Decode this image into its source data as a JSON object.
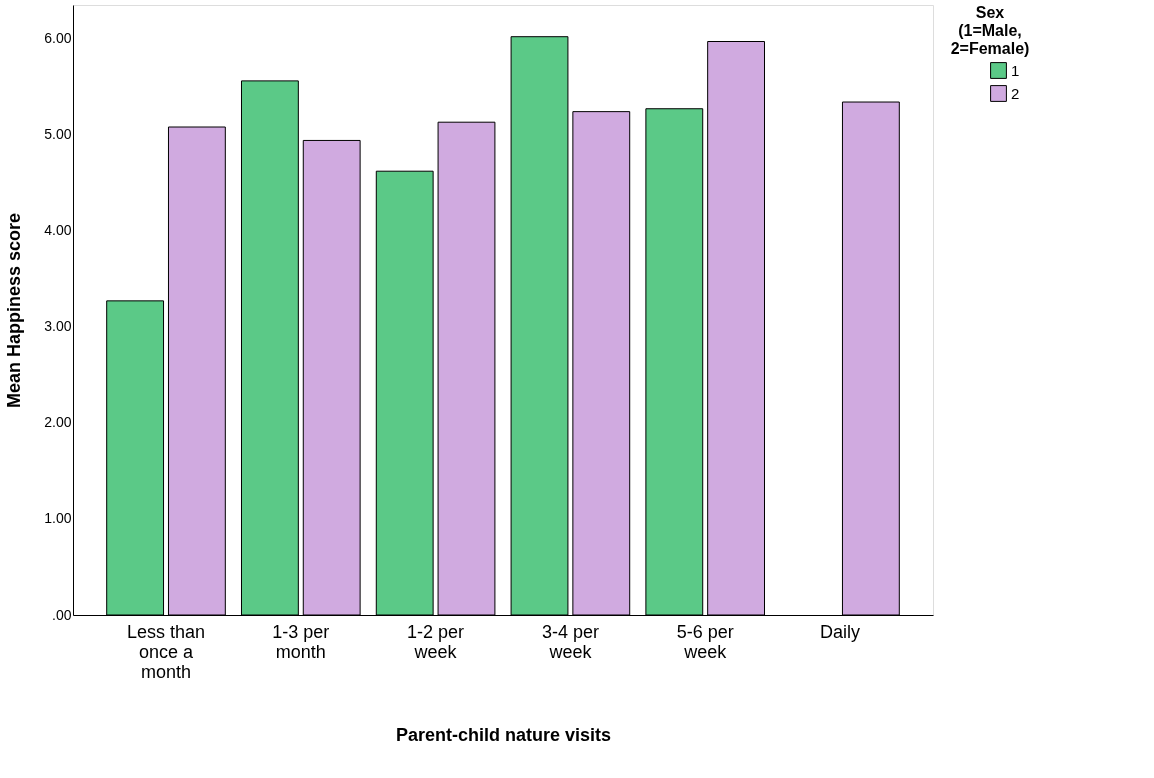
{
  "chart_data": {
    "type": "bar",
    "xlabel": "Parent-child nature visits",
    "ylabel": "Mean Happiness score",
    "legend_title": "Sex\n(1=Male,\n2=Female)",
    "categories": [
      "Less than once a month",
      "1-3 per month",
      "1-2 per week",
      "3-4 per week",
      "5-6 per week",
      "Daily"
    ],
    "series": [
      {
        "name": "1",
        "color": "#5bc987",
        "values": [
          3.27,
          5.56,
          4.62,
          6.02,
          5.27,
          null
        ]
      },
      {
        "name": "2",
        "color": "#d0aae0",
        "values": [
          5.08,
          4.94,
          5.13,
          5.24,
          5.97,
          5.34
        ]
      }
    ],
    "ylim": [
      0,
      6.35
    ],
    "yticks": [
      {
        "value": 0,
        "label": ".00"
      },
      {
        "value": 1,
        "label": "1.00"
      },
      {
        "value": 2,
        "label": "2.00"
      },
      {
        "value": 3,
        "label": "3.00"
      },
      {
        "value": 4,
        "label": "4.00"
      },
      {
        "value": 5,
        "label": "5.00"
      },
      {
        "value": 6,
        "label": "6.00"
      }
    ],
    "grid": false,
    "legend": "top right"
  }
}
